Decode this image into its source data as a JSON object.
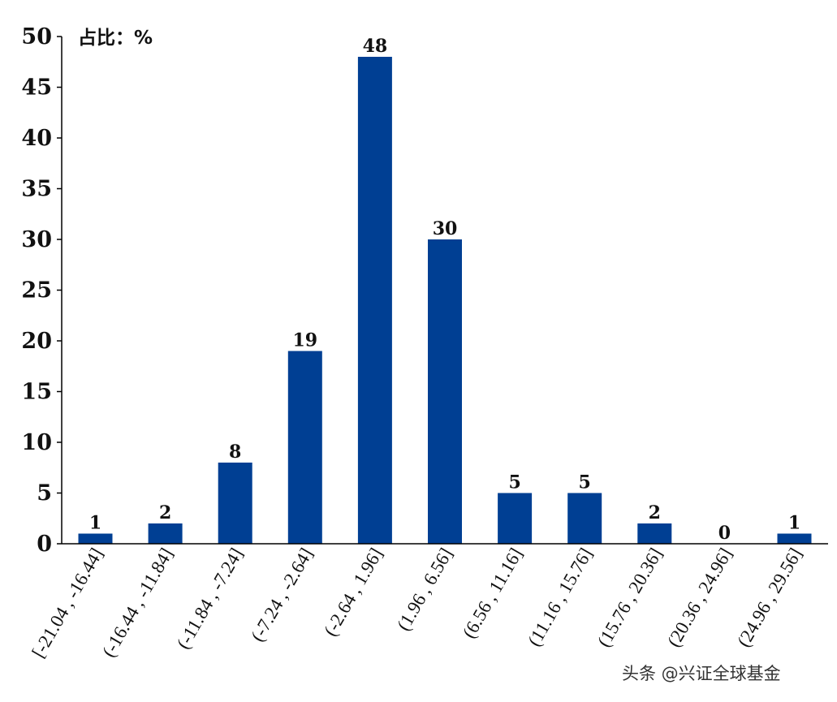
{
  "chart_data": {
    "type": "bar",
    "unit_label": "占比：%",
    "categories": [
      "[-21.04 , -16.44]",
      "(-16.44 , -11.84]",
      "(-11.84 , -7.24]",
      "(-7.24 , -2.64]",
      "(-2.64 , 1.96]",
      "(1.96 , 6.56]",
      "(6.56 , 11.16]",
      "(11.16 , 15.76]",
      "(15.76 , 20.36]",
      "(20.36 , 24.96]",
      "(24.96 , 29.56]"
    ],
    "values": [
      1,
      2,
      8,
      19,
      48,
      30,
      5,
      5,
      2,
      0,
      1
    ],
    "ylim": [
      0,
      50
    ],
    "yticks": [
      0,
      5,
      10,
      15,
      20,
      25,
      30,
      35,
      40,
      45,
      50
    ],
    "bar_color": "#003f93",
    "grid": false,
    "legend": "none"
  },
  "watermark": "头条 @兴证全球基金"
}
